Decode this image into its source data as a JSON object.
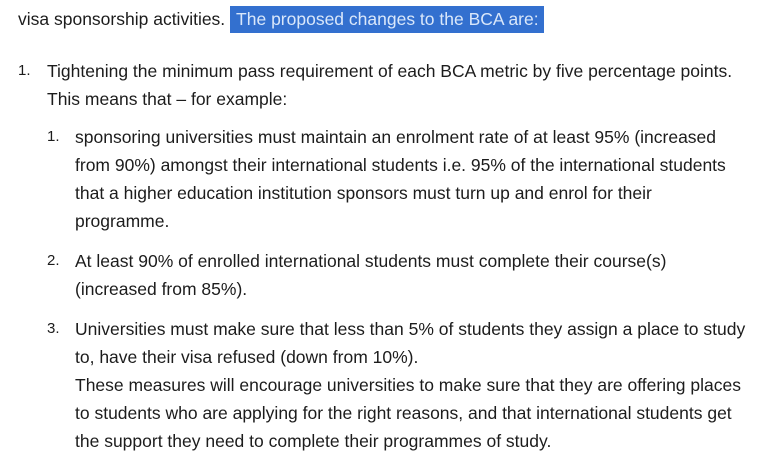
{
  "page": {
    "colors": {
      "text": "#1c1c1c",
      "highlight_bg": "#3370cf",
      "highlight_text": "#d9e7fa",
      "background": "#ffffff"
    }
  },
  "intro": {
    "plain_text": "visa sponsorship activities. ",
    "highlighted_text": "The proposed changes to the BCA are:"
  },
  "list": {
    "items": [
      {
        "number": "1.",
        "text": "Tightening the minimum pass requirement of each BCA metric by five percentage points. This means that – for example:",
        "sub_items": [
          {
            "number": "1.",
            "text": "sponsoring universities must maintain an enrolment rate of at least 95% (increased from 90%) amongst their international students i.e. 95% of the international students that a higher education institution sponsors must turn up and enrol for their programme."
          },
          {
            "number": "2.",
            "text": "At least 90% of enrolled international students must complete their course(s) (increased from 85%)."
          },
          {
            "number": "3.",
            "text": "Universities must make sure that less than 5% of students they assign a place to study to, have their visa refused (down from 10%).",
            "continuation": "These measures will encourage universities to make sure that they are offering places to students who are applying for the right reasons, and that international students get the support they need to complete their programmes of study."
          }
        ]
      }
    ]
  }
}
